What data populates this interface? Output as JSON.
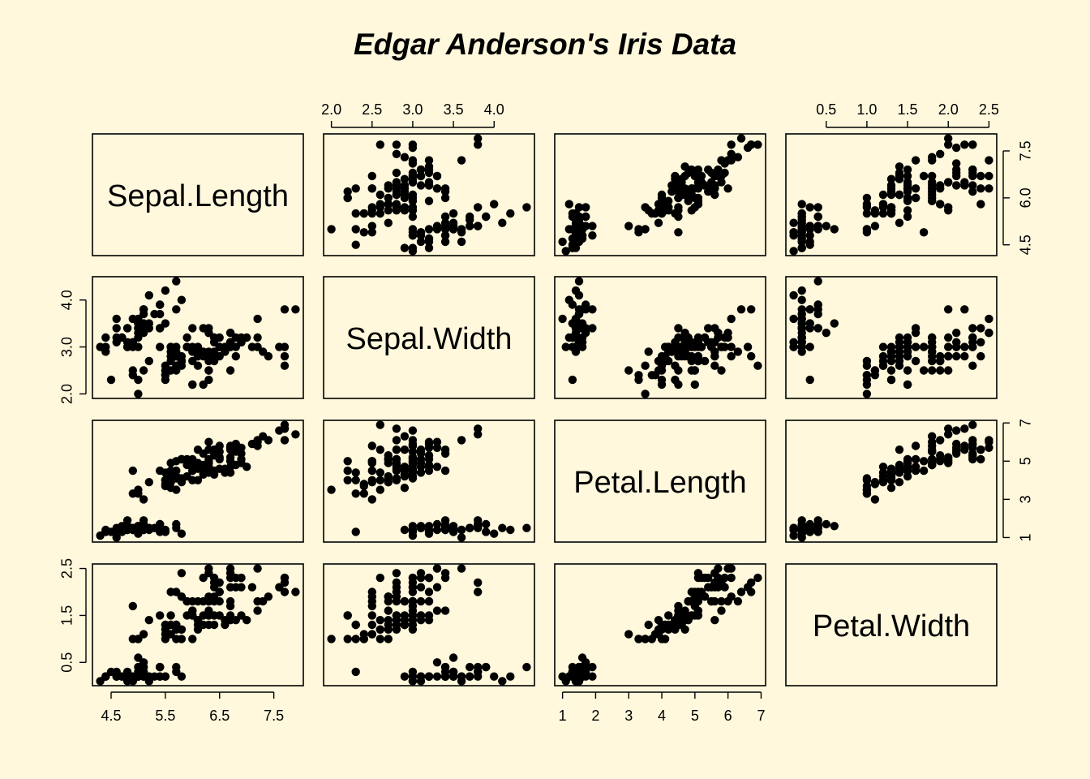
{
  "chart_data": {
    "type": "scatter",
    "title": "Edgar Anderson's Iris Data",
    "colors": {
      "background": "#FFF8DC",
      "points": "#000000",
      "frame": "#000000"
    },
    "variables": [
      "Sepal.Length",
      "Sepal.Width",
      "Petal.Length",
      "Petal.Width"
    ],
    "tick_labels": {
      "Sepal.Length": [
        "4.5",
        "5.5",
        "6.5",
        "7.5"
      ],
      "Sepal.Width": [
        "2.0",
        "2.5",
        "3.0",
        "3.5",
        "4.0"
      ],
      "Petal.Length": [
        "1",
        "2",
        "3",
        "4",
        "5",
        "6",
        "7"
      ],
      "Petal.Width": [
        "0.5",
        "1.0",
        "1.5",
        "2.0",
        "2.5"
      ]
    },
    "left_axis_tick_labels": {
      "Sepal.Width": [
        "2.0",
        "3.0",
        "4.0"
      ],
      "Petal.Width": [
        "0.5",
        "1.5",
        "2.5"
      ]
    },
    "right_axis_tick_labels": {
      "Sepal.Length": [
        "4.5",
        "6.0",
        "7.5"
      ],
      "Petal.Length": [
        "1",
        "3",
        "5",
        "7"
      ]
    },
    "ranges": {
      "Sepal.Length": [
        4.3,
        7.9
      ],
      "Sepal.Width": [
        2.0,
        4.4
      ],
      "Petal.Length": [
        1.0,
        6.9
      ],
      "Petal.Width": [
        0.1,
        2.5
      ]
    },
    "columns": [
      "Sepal.Length",
      "Sepal.Width",
      "Petal.Length",
      "Petal.Width"
    ],
    "rows": [
      [
        5.1,
        3.5,
        1.4,
        0.2
      ],
      [
        4.9,
        3.0,
        1.4,
        0.2
      ],
      [
        4.7,
        3.2,
        1.3,
        0.2
      ],
      [
        4.6,
        3.1,
        1.5,
        0.2
      ],
      [
        5.0,
        3.6,
        1.4,
        0.2
      ],
      [
        5.4,
        3.9,
        1.7,
        0.4
      ],
      [
        4.6,
        3.4,
        1.4,
        0.3
      ],
      [
        5.0,
        3.4,
        1.5,
        0.2
      ],
      [
        4.4,
        2.9,
        1.4,
        0.2
      ],
      [
        4.9,
        3.1,
        1.5,
        0.1
      ],
      [
        5.4,
        3.7,
        1.5,
        0.2
      ],
      [
        4.8,
        3.4,
        1.6,
        0.2
      ],
      [
        4.8,
        3.0,
        1.4,
        0.1
      ],
      [
        4.3,
        3.0,
        1.1,
        0.1
      ],
      [
        5.8,
        4.0,
        1.2,
        0.2
      ],
      [
        5.7,
        4.4,
        1.5,
        0.4
      ],
      [
        5.4,
        3.9,
        1.3,
        0.4
      ],
      [
        5.1,
        3.5,
        1.4,
        0.3
      ],
      [
        5.7,
        3.8,
        1.7,
        0.3
      ],
      [
        5.1,
        3.8,
        1.5,
        0.3
      ],
      [
        5.4,
        3.4,
        1.7,
        0.2
      ],
      [
        5.1,
        3.7,
        1.5,
        0.4
      ],
      [
        4.6,
        3.6,
        1.0,
        0.2
      ],
      [
        5.1,
        3.3,
        1.7,
        0.5
      ],
      [
        4.8,
        3.4,
        1.9,
        0.2
      ],
      [
        5.0,
        3.0,
        1.6,
        0.2
      ],
      [
        5.0,
        3.4,
        1.6,
        0.4
      ],
      [
        5.2,
        3.5,
        1.5,
        0.2
      ],
      [
        5.2,
        3.4,
        1.4,
        0.2
      ],
      [
        4.7,
        3.2,
        1.6,
        0.2
      ],
      [
        4.8,
        3.1,
        1.6,
        0.2
      ],
      [
        5.4,
        3.4,
        1.5,
        0.4
      ],
      [
        5.2,
        4.1,
        1.5,
        0.1
      ],
      [
        5.5,
        4.2,
        1.4,
        0.2
      ],
      [
        4.9,
        3.1,
        1.5,
        0.2
      ],
      [
        5.0,
        3.2,
        1.2,
        0.2
      ],
      [
        5.5,
        3.5,
        1.3,
        0.2
      ],
      [
        4.9,
        3.6,
        1.4,
        0.1
      ],
      [
        4.4,
        3.0,
        1.3,
        0.2
      ],
      [
        5.1,
        3.4,
        1.5,
        0.2
      ],
      [
        5.0,
        3.5,
        1.3,
        0.3
      ],
      [
        4.5,
        2.3,
        1.3,
        0.3
      ],
      [
        4.4,
        3.2,
        1.3,
        0.2
      ],
      [
        5.0,
        3.5,
        1.6,
        0.6
      ],
      [
        5.1,
        3.8,
        1.9,
        0.4
      ],
      [
        4.8,
        3.0,
        1.4,
        0.3
      ],
      [
        5.1,
        3.8,
        1.6,
        0.2
      ],
      [
        4.6,
        3.2,
        1.4,
        0.2
      ],
      [
        5.3,
        3.7,
        1.5,
        0.2
      ],
      [
        5.0,
        3.3,
        1.4,
        0.2
      ],
      [
        7.0,
        3.2,
        4.7,
        1.4
      ],
      [
        6.4,
        3.2,
        4.5,
        1.5
      ],
      [
        6.9,
        3.1,
        4.9,
        1.5
      ],
      [
        5.5,
        2.3,
        4.0,
        1.3
      ],
      [
        6.5,
        2.8,
        4.6,
        1.5
      ],
      [
        5.7,
        2.8,
        4.5,
        1.3
      ],
      [
        6.3,
        3.3,
        4.7,
        1.6
      ],
      [
        4.9,
        2.4,
        3.3,
        1.0
      ],
      [
        6.6,
        2.9,
        4.6,
        1.3
      ],
      [
        5.2,
        2.7,
        3.9,
        1.4
      ],
      [
        5.0,
        2.0,
        3.5,
        1.0
      ],
      [
        5.9,
        3.0,
        4.2,
        1.5
      ],
      [
        6.0,
        2.2,
        4.0,
        1.0
      ],
      [
        6.1,
        2.9,
        4.7,
        1.4
      ],
      [
        5.6,
        2.9,
        3.6,
        1.3
      ],
      [
        6.7,
        3.1,
        4.4,
        1.4
      ],
      [
        5.6,
        3.0,
        4.5,
        1.5
      ],
      [
        5.8,
        2.7,
        4.1,
        1.0
      ],
      [
        6.2,
        2.2,
        4.5,
        1.5
      ],
      [
        5.6,
        2.5,
        3.9,
        1.1
      ],
      [
        5.9,
        3.2,
        4.8,
        1.8
      ],
      [
        6.1,
        2.8,
        4.0,
        1.3
      ],
      [
        6.3,
        2.5,
        4.9,
        1.5
      ],
      [
        6.1,
        2.8,
        4.7,
        1.2
      ],
      [
        6.4,
        2.9,
        4.3,
        1.3
      ],
      [
        6.6,
        3.0,
        4.4,
        1.4
      ],
      [
        6.8,
        2.8,
        4.8,
        1.4
      ],
      [
        6.7,
        3.0,
        5.0,
        1.7
      ],
      [
        6.0,
        2.9,
        4.5,
        1.5
      ],
      [
        5.7,
        2.6,
        3.5,
        1.0
      ],
      [
        5.5,
        2.4,
        3.8,
        1.1
      ],
      [
        5.5,
        2.4,
        3.7,
        1.0
      ],
      [
        5.8,
        2.7,
        3.9,
        1.2
      ],
      [
        6.0,
        2.7,
        5.1,
        1.6
      ],
      [
        5.4,
        3.0,
        4.5,
        1.5
      ],
      [
        6.0,
        3.4,
        4.5,
        1.6
      ],
      [
        6.7,
        3.1,
        4.7,
        1.5
      ],
      [
        6.3,
        2.3,
        4.4,
        1.3
      ],
      [
        5.6,
        3.0,
        4.1,
        1.3
      ],
      [
        5.5,
        2.5,
        4.0,
        1.3
      ],
      [
        5.5,
        2.6,
        4.4,
        1.2
      ],
      [
        6.1,
        3.0,
        4.6,
        1.4
      ],
      [
        5.8,
        2.6,
        4.0,
        1.2
      ],
      [
        5.0,
        2.3,
        3.3,
        1.0
      ],
      [
        5.6,
        2.7,
        4.2,
        1.3
      ],
      [
        5.7,
        3.0,
        4.2,
        1.2
      ],
      [
        5.7,
        2.9,
        4.2,
        1.3
      ],
      [
        6.2,
        2.9,
        4.3,
        1.3
      ],
      [
        5.1,
        2.5,
        3.0,
        1.1
      ],
      [
        5.7,
        2.8,
        4.1,
        1.3
      ],
      [
        6.3,
        3.3,
        6.0,
        2.5
      ],
      [
        5.8,
        2.7,
        5.1,
        1.9
      ],
      [
        7.1,
        3.0,
        5.9,
        2.1
      ],
      [
        6.3,
        2.9,
        5.6,
        1.8
      ],
      [
        6.5,
        3.0,
        5.8,
        2.2
      ],
      [
        7.6,
        3.0,
        6.6,
        2.1
      ],
      [
        4.9,
        2.5,
        4.5,
        1.7
      ],
      [
        7.3,
        2.9,
        6.3,
        1.8
      ],
      [
        6.7,
        2.5,
        5.8,
        1.8
      ],
      [
        7.2,
        3.6,
        6.1,
        2.5
      ],
      [
        6.5,
        3.2,
        5.1,
        2.0
      ],
      [
        6.4,
        2.7,
        5.3,
        1.9
      ],
      [
        6.8,
        3.0,
        5.5,
        2.1
      ],
      [
        5.7,
        2.5,
        5.0,
        2.0
      ],
      [
        5.8,
        2.8,
        5.1,
        2.4
      ],
      [
        6.4,
        3.2,
        5.3,
        2.3
      ],
      [
        6.5,
        3.0,
        5.5,
        1.8
      ],
      [
        7.7,
        3.8,
        6.7,
        2.2
      ],
      [
        7.7,
        2.6,
        6.9,
        2.3
      ],
      [
        6.0,
        2.2,
        5.0,
        1.5
      ],
      [
        6.9,
        3.2,
        5.7,
        2.3
      ],
      [
        5.6,
        2.8,
        4.9,
        2.0
      ],
      [
        7.7,
        2.8,
        6.7,
        2.0
      ],
      [
        6.3,
        2.7,
        4.9,
        1.8
      ],
      [
        6.7,
        3.3,
        5.7,
        2.1
      ],
      [
        7.2,
        3.2,
        6.0,
        1.8
      ],
      [
        6.2,
        2.8,
        4.8,
        1.8
      ],
      [
        6.1,
        3.0,
        4.9,
        1.8
      ],
      [
        6.4,
        2.8,
        5.6,
        2.1
      ],
      [
        7.2,
        3.0,
        5.8,
        1.6
      ],
      [
        7.4,
        2.8,
        6.1,
        1.9
      ],
      [
        7.9,
        3.8,
        6.4,
        2.0
      ],
      [
        6.4,
        2.8,
        5.6,
        2.2
      ],
      [
        6.3,
        2.8,
        5.1,
        1.5
      ],
      [
        6.1,
        2.6,
        5.6,
        1.4
      ],
      [
        7.7,
        3.0,
        6.1,
        2.3
      ],
      [
        6.3,
        3.4,
        5.6,
        2.4
      ],
      [
        6.4,
        3.1,
        5.5,
        1.8
      ],
      [
        6.0,
        3.0,
        4.8,
        1.8
      ],
      [
        6.9,
        3.1,
        5.4,
        2.1
      ],
      [
        6.7,
        3.1,
        5.6,
        2.4
      ],
      [
        6.9,
        3.1,
        5.1,
        2.3
      ],
      [
        5.8,
        2.7,
        5.1,
        1.9
      ],
      [
        6.8,
        3.2,
        5.9,
        2.3
      ],
      [
        6.7,
        3.3,
        5.7,
        2.5
      ],
      [
        6.7,
        3.0,
        5.2,
        2.3
      ],
      [
        6.3,
        2.5,
        5.0,
        1.9
      ],
      [
        6.5,
        3.0,
        5.2,
        2.0
      ],
      [
        6.2,
        3.4,
        5.4,
        2.3
      ],
      [
        5.9,
        3.0,
        5.1,
        1.8
      ]
    ]
  }
}
